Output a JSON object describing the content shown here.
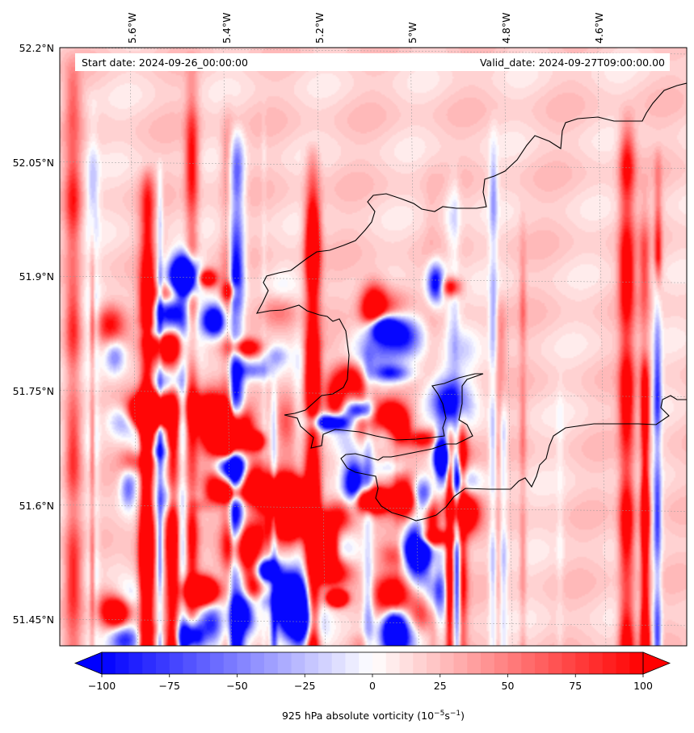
{
  "chart_data": {
    "type": "heatmap",
    "map": {
      "start_date_text": "Start date: 2024-09-26_00:00:00",
      "valid_date_text": "Valid_date: 2024-09-27T09:00:00.00",
      "lon_ticks": [
        "5.6°W",
        "5.4°W",
        "5.2°W",
        "5°W",
        "4.8°W",
        "4.6°W"
      ],
      "lon_values": [
        -5.6,
        -5.4,
        -5.2,
        -5.0,
        -4.8,
        -4.6
      ],
      "lat_ticks": [
        "52.2°N",
        "52.05°N",
        "51.9°N",
        "51.75°N",
        "51.6°N",
        "51.45°N"
      ],
      "lat_values": [
        52.2,
        52.05,
        51.9,
        51.75,
        51.6,
        51.45
      ],
      "lon_range": [
        -5.75,
        -4.41
      ],
      "lat_range": [
        51.415,
        52.2
      ],
      "gridlines": true,
      "coastline": true
    },
    "colorbar": {
      "label": "925 hPa absolute vorticity (10",
      "label_exp1": "−5",
      "label_mid": "s",
      "label_exp2": "−1",
      "label_end": ")",
      "ticks": [
        "−100",
        "−75",
        "−50",
        "−25",
        "0",
        "25",
        "50",
        "75",
        "100"
      ],
      "tick_values": [
        -100,
        -75,
        -50,
        -25,
        0,
        25,
        50,
        75,
        100
      ],
      "range": [
        -100,
        100
      ],
      "n_levels": 40,
      "colormap": "bwr",
      "extend": "both"
    },
    "field_description": "absolute vorticity at 925 hPa",
    "colors": {
      "negative": "#0000ff",
      "zero": "#ffffff",
      "positive": "#ff0000",
      "coast": "#000000"
    }
  }
}
